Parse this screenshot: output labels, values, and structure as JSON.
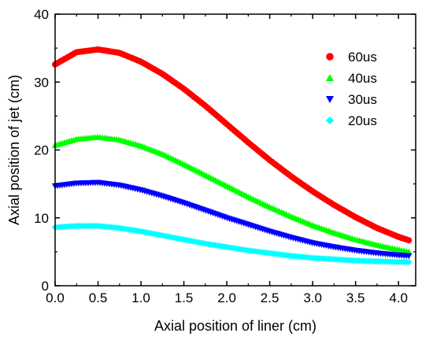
{
  "chart_data": {
    "type": "scatter",
    "title": "",
    "xlabel": "Axial position of liner (cm)",
    "ylabel": "Axial position of jet (cm)",
    "xlim": [
      0.0,
      4.2
    ],
    "ylim": [
      0,
      40
    ],
    "xticks": [
      "0.0",
      "0.5",
      "1.0",
      "1.5",
      "2.0",
      "2.5",
      "3.0",
      "3.5",
      "4.0"
    ],
    "yticks": [
      "0",
      "10",
      "20",
      "30",
      "40"
    ],
    "grid": false,
    "legend_position": "top-right",
    "x": [
      0.0,
      0.25,
      0.5,
      0.75,
      1.0,
      1.25,
      1.5,
      1.75,
      2.0,
      2.25,
      2.5,
      2.75,
      3.0,
      3.25,
      3.5,
      3.75,
      4.0,
      4.12
    ],
    "series": [
      {
        "name": "60us",
        "color": "#ff0000",
        "marker": "circle",
        "values": [
          32.6,
          34.4,
          34.8,
          34.3,
          33.0,
          31.2,
          29.0,
          26.5,
          23.8,
          21.1,
          18.5,
          16.1,
          13.9,
          11.9,
          10.1,
          8.5,
          7.2,
          6.7
        ]
      },
      {
        "name": "40us",
        "color": "#00ff00",
        "marker": "triangle-up",
        "values": [
          20.7,
          21.6,
          21.9,
          21.5,
          20.6,
          19.4,
          17.9,
          16.3,
          14.7,
          13.1,
          11.6,
          10.2,
          8.9,
          7.8,
          6.8,
          6.0,
          5.3,
          5.0
        ]
      },
      {
        "name": "30us",
        "color": "#0000ff",
        "marker": "triangle-down",
        "values": [
          14.7,
          15.1,
          15.2,
          14.8,
          14.1,
          13.2,
          12.2,
          11.1,
          10.0,
          9.0,
          8.0,
          7.1,
          6.3,
          5.7,
          5.2,
          4.8,
          4.5,
          4.4
        ]
      },
      {
        "name": "20us",
        "color": "#00ffff",
        "marker": "diamond",
        "values": [
          8.6,
          8.8,
          8.8,
          8.5,
          8.0,
          7.4,
          6.8,
          6.2,
          5.7,
          5.2,
          4.8,
          4.4,
          4.1,
          3.9,
          3.7,
          3.6,
          3.5,
          3.5
        ]
      }
    ]
  }
}
